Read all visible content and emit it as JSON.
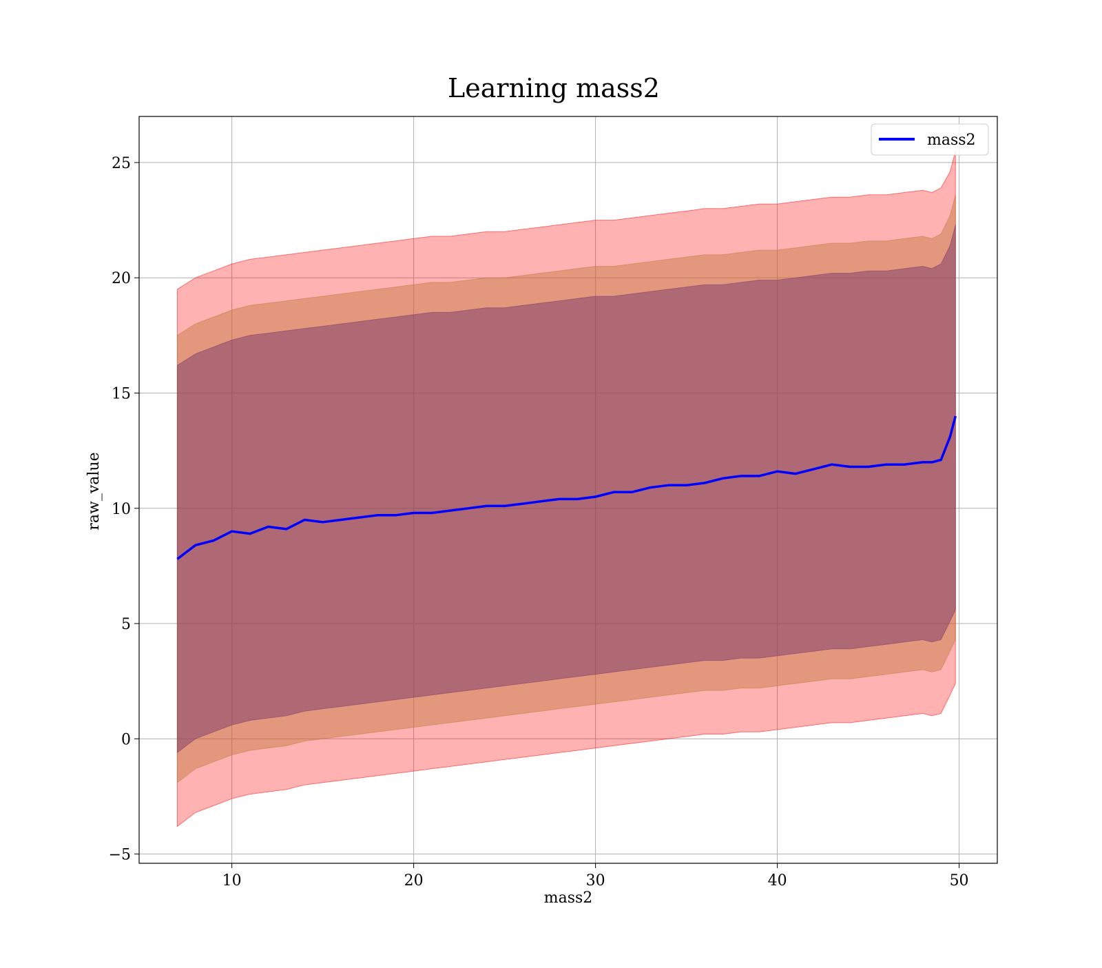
{
  "chart_data": {
    "type": "area",
    "title": "Learning mass2",
    "xlabel": "mass2",
    "ylabel": "raw_value",
    "xlim": [
      4.9,
      52.1
    ],
    "ylim": [
      -5.4,
      27.0
    ],
    "xticks": [
      10,
      20,
      30,
      40,
      50
    ],
    "yticks": [
      -5,
      0,
      5,
      10,
      15,
      20,
      25
    ],
    "xtick_labels": [
      "10",
      "20",
      "30",
      "40",
      "50"
    ],
    "ytick_labels": [
      "−5",
      "0",
      "5",
      "10",
      "15",
      "20",
      "25"
    ],
    "grid": true,
    "legend": {
      "position": "top-right",
      "entries": [
        "mass2"
      ]
    },
    "colors": {
      "line": "#0000ff",
      "band_outer": "#ff0000",
      "band_middle": "#c2783e",
      "band_inner": "#7a3a6a"
    },
    "x": [
      7.0,
      8.0,
      9.0,
      10.0,
      11.0,
      12.0,
      13.0,
      14.0,
      15.0,
      16.0,
      17.0,
      18.0,
      19.0,
      20.0,
      21.0,
      22.0,
      23.0,
      24.0,
      25.0,
      26.0,
      27.0,
      28.0,
      29.0,
      30.0,
      31.0,
      32.0,
      33.0,
      34.0,
      35.0,
      36.0,
      37.0,
      38.0,
      39.0,
      40.0,
      41.0,
      42.0,
      43.0,
      44.0,
      45.0,
      46.0,
      47.0,
      48.0,
      48.5,
      49.0,
      49.5,
      49.8
    ],
    "series": [
      {
        "name": "mass2",
        "values": [
          7.8,
          8.4,
          8.6,
          9.0,
          8.9,
          9.2,
          9.1,
          9.5,
          9.4,
          9.5,
          9.6,
          9.7,
          9.7,
          9.8,
          9.8,
          9.9,
          10.0,
          10.1,
          10.1,
          10.2,
          10.3,
          10.4,
          10.4,
          10.5,
          10.7,
          10.7,
          10.9,
          11.0,
          11.0,
          11.1,
          11.3,
          11.4,
          11.4,
          11.6,
          11.5,
          11.7,
          11.9,
          11.8,
          11.8,
          11.9,
          11.9,
          12.0,
          12.0,
          12.1,
          13.1,
          14.0
        ]
      }
    ],
    "bands": [
      {
        "level": "outer",
        "lower": [
          -3.8,
          -3.2,
          -2.9,
          -2.6,
          -2.4,
          -2.3,
          -2.2,
          -2.0,
          -1.9,
          -1.8,
          -1.7,
          -1.6,
          -1.5,
          -1.4,
          -1.3,
          -1.2,
          -1.1,
          -1.0,
          -0.9,
          -0.8,
          -0.7,
          -0.6,
          -0.5,
          -0.4,
          -0.3,
          -0.2,
          -0.1,
          0.0,
          0.1,
          0.2,
          0.2,
          0.3,
          0.3,
          0.4,
          0.5,
          0.6,
          0.7,
          0.7,
          0.8,
          0.9,
          1.0,
          1.1,
          1.0,
          1.1,
          1.9,
          2.4
        ],
        "upper": [
          19.5,
          20.0,
          20.3,
          20.6,
          20.8,
          20.9,
          21.0,
          21.1,
          21.2,
          21.3,
          21.4,
          21.5,
          21.6,
          21.7,
          21.8,
          21.8,
          21.9,
          22.0,
          22.0,
          22.1,
          22.2,
          22.3,
          22.4,
          22.5,
          22.5,
          22.6,
          22.7,
          22.8,
          22.9,
          23.0,
          23.0,
          23.1,
          23.2,
          23.2,
          23.3,
          23.4,
          23.5,
          23.5,
          23.6,
          23.6,
          23.7,
          23.8,
          23.7,
          23.9,
          24.6,
          25.5
        ]
      },
      {
        "level": "middle",
        "lower": [
          -1.9,
          -1.3,
          -1.0,
          -0.7,
          -0.5,
          -0.4,
          -0.3,
          -0.1,
          0.0,
          0.1,
          0.2,
          0.3,
          0.4,
          0.5,
          0.6,
          0.7,
          0.8,
          0.9,
          1.0,
          1.1,
          1.2,
          1.3,
          1.4,
          1.5,
          1.6,
          1.7,
          1.8,
          1.9,
          2.0,
          2.1,
          2.1,
          2.2,
          2.2,
          2.3,
          2.4,
          2.5,
          2.6,
          2.6,
          2.7,
          2.8,
          2.9,
          3.0,
          2.9,
          3.0,
          3.8,
          4.3
        ],
        "upper": [
          17.5,
          18.0,
          18.3,
          18.6,
          18.8,
          18.9,
          19.0,
          19.1,
          19.2,
          19.3,
          19.4,
          19.5,
          19.6,
          19.7,
          19.8,
          19.8,
          19.9,
          20.0,
          20.0,
          20.1,
          20.2,
          20.3,
          20.4,
          20.5,
          20.5,
          20.6,
          20.7,
          20.8,
          20.9,
          21.0,
          21.0,
          21.1,
          21.2,
          21.2,
          21.3,
          21.4,
          21.5,
          21.5,
          21.6,
          21.6,
          21.7,
          21.8,
          21.7,
          21.9,
          22.7,
          23.6
        ]
      },
      {
        "level": "inner",
        "lower": [
          -0.6,
          0.0,
          0.3,
          0.6,
          0.8,
          0.9,
          1.0,
          1.2,
          1.3,
          1.4,
          1.5,
          1.6,
          1.7,
          1.8,
          1.9,
          2.0,
          2.1,
          2.2,
          2.3,
          2.4,
          2.5,
          2.6,
          2.7,
          2.8,
          2.9,
          3.0,
          3.1,
          3.2,
          3.3,
          3.4,
          3.4,
          3.5,
          3.5,
          3.6,
          3.7,
          3.8,
          3.9,
          3.9,
          4.0,
          4.1,
          4.2,
          4.3,
          4.2,
          4.3,
          5.1,
          5.6
        ],
        "upper": [
          16.2,
          16.7,
          17.0,
          17.3,
          17.5,
          17.6,
          17.7,
          17.8,
          17.9,
          18.0,
          18.1,
          18.2,
          18.3,
          18.4,
          18.5,
          18.5,
          18.6,
          18.7,
          18.7,
          18.8,
          18.9,
          19.0,
          19.1,
          19.2,
          19.2,
          19.3,
          19.4,
          19.5,
          19.6,
          19.7,
          19.7,
          19.8,
          19.9,
          19.9,
          20.0,
          20.1,
          20.2,
          20.2,
          20.3,
          20.3,
          20.4,
          20.5,
          20.4,
          20.6,
          21.4,
          22.3
        ]
      }
    ]
  }
}
